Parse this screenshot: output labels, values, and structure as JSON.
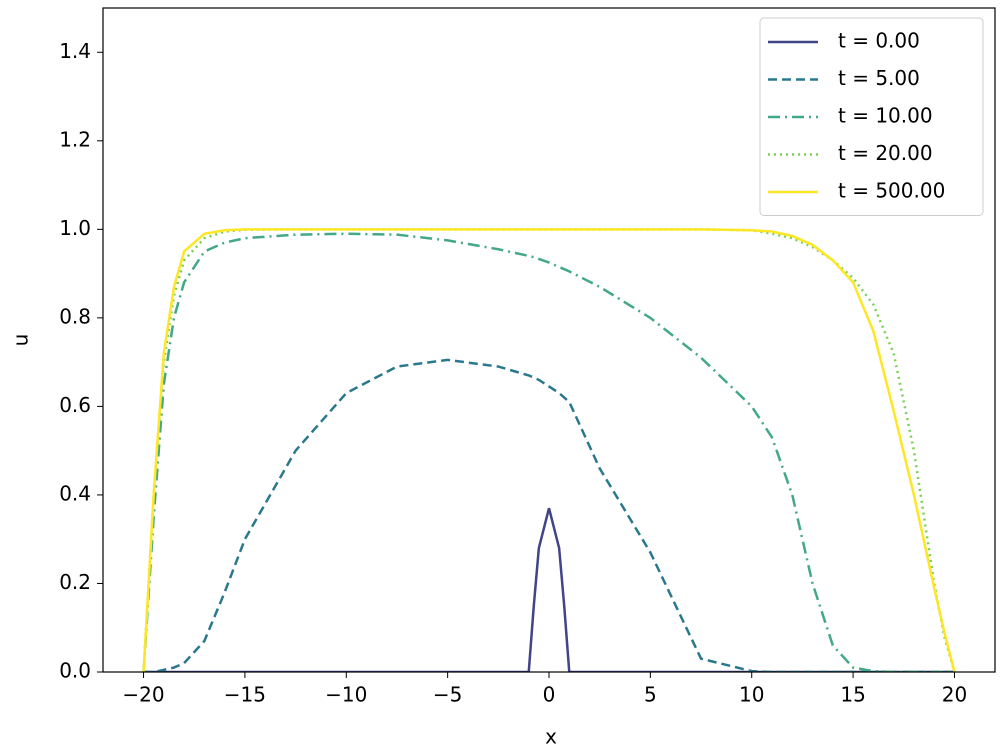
{
  "chart_data": {
    "type": "line",
    "xlabel": "x",
    "ylabel": "u",
    "x": [
      -20,
      -19.5,
      -19,
      -18.5,
      -18,
      -17,
      -16,
      -15,
      -12.5,
      -10,
      -7.5,
      -5,
      -2.5,
      -1,
      -0.75,
      -0.5,
      0,
      0.5,
      0.75,
      1,
      2.5,
      5,
      7.5,
      10,
      11,
      12,
      13,
      14,
      15,
      16,
      17,
      18,
      19,
      19.5,
      20
    ],
    "series": [
      {
        "name": "t = 0.00",
        "color": "#414487",
        "linestyle": "solid",
        "values": [
          0,
          0,
          0,
          0,
          0,
          0,
          0,
          0,
          0,
          0,
          0,
          0,
          0,
          0,
          0.15,
          0.28,
          0.37,
          0.28,
          0.15,
          0,
          0,
          0,
          0,
          0,
          0,
          0,
          0,
          0,
          0,
          0,
          0,
          0,
          0,
          0,
          0
        ]
      },
      {
        "name": "t = 5.00",
        "color": "#2a788e",
        "linestyle": "dashed",
        "values": [
          0,
          0,
          0.005,
          0.01,
          0.02,
          0.07,
          0.18,
          0.3,
          0.5,
          0.63,
          0.69,
          0.705,
          0.69,
          0.67,
          0.665,
          0.66,
          0.645,
          0.63,
          0.62,
          0.61,
          0.46,
          0.27,
          0.03,
          0.002,
          0,
          0,
          0,
          0,
          0,
          0,
          0,
          0,
          0,
          0,
          0
        ]
      },
      {
        "name": "t = 10.00",
        "color": "#42a886",
        "linestyle": "dashdot",
        "values": [
          0,
          0.35,
          0.65,
          0.8,
          0.88,
          0.95,
          0.97,
          0.98,
          0.988,
          0.99,
          0.988,
          0.975,
          0.955,
          0.94,
          0.937,
          0.933,
          0.925,
          0.915,
          0.91,
          0.905,
          0.87,
          0.8,
          0.71,
          0.6,
          0.53,
          0.4,
          0.2,
          0.06,
          0.01,
          0.002,
          0,
          0,
          0,
          0,
          0
        ]
      },
      {
        "name": "t = 20.00",
        "color": "#7ad151",
        "linestyle": "dotted",
        "values": [
          0,
          0.4,
          0.7,
          0.85,
          0.93,
          0.98,
          0.995,
          0.999,
          1,
          1,
          1,
          1,
          1,
          1,
          1,
          1,
          1,
          1,
          1,
          1,
          1,
          1,
          1,
          0.998,
          0.99,
          0.98,
          0.96,
          0.93,
          0.89,
          0.83,
          0.72,
          0.5,
          0.2,
          0.08,
          0
        ]
      },
      {
        "name": "t = 500.00",
        "color": "#fde725",
        "linestyle": "solid",
        "values": [
          0,
          0.4,
          0.72,
          0.87,
          0.95,
          0.99,
          0.998,
          1,
          1,
          1,
          1,
          1,
          1,
          1,
          1,
          1,
          1,
          1,
          1,
          1,
          1,
          1,
          1,
          0.998,
          0.995,
          0.985,
          0.965,
          0.93,
          0.88,
          0.77,
          0.59,
          0.4,
          0.19,
          0.09,
          0
        ]
      }
    ],
    "xlim": [
      -22,
      22
    ],
    "ylim": [
      0,
      1.5
    ],
    "xticks": [
      {
        "value": -20,
        "label": "−20"
      },
      {
        "value": -15,
        "label": "−15"
      },
      {
        "value": -10,
        "label": "−10"
      },
      {
        "value": -5,
        "label": "−5"
      },
      0,
      5,
      10,
      15,
      20
    ],
    "yticks": [
      {
        "value": 0,
        "label": "0.0"
      },
      0.2,
      0.4,
      0.6,
      0.8,
      {
        "value": 1,
        "label": "1.0"
      },
      1.2,
      1.4
    ],
    "legend": "upper right"
  }
}
